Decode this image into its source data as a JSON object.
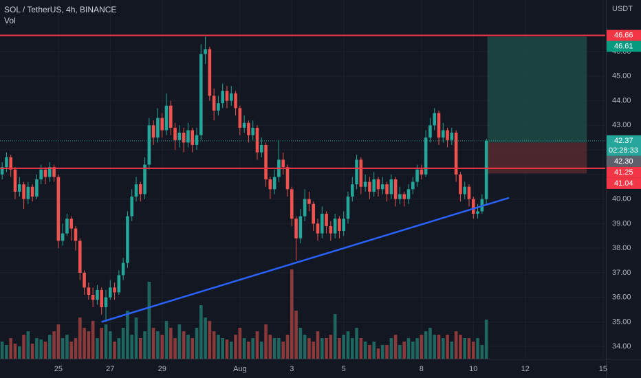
{
  "chart_data": {
    "type": "candlestick",
    "title": "SOL / TetherUS, 4h, BINANCE",
    "volume_label": "Vol",
    "y_axis_label": "USDT",
    "xlim": [
      18,
      578
    ],
    "xticks": [
      {
        "value": 72,
        "label": "25"
      },
      {
        "value": 120,
        "label": "27"
      },
      {
        "value": 168,
        "label": "29"
      },
      {
        "value": 240,
        "label": "Aug"
      },
      {
        "value": 288,
        "label": "3"
      },
      {
        "value": 336,
        "label": "5"
      },
      {
        "value": 408,
        "label": "8"
      },
      {
        "value": 456,
        "label": "10"
      },
      {
        "value": 504,
        "label": "12"
      },
      {
        "value": 576,
        "label": "15"
      }
    ],
    "ylim": [
      33.5,
      48.1
    ],
    "yticks": [
      {
        "value": 34,
        "label": "34.00"
      },
      {
        "value": 35,
        "label": "35.00"
      },
      {
        "value": 36,
        "label": "36.00"
      },
      {
        "value": 37,
        "label": "37.00"
      },
      {
        "value": 38,
        "label": "38.00"
      },
      {
        "value": 39,
        "label": "39.00"
      },
      {
        "value": 40,
        "label": "40.00"
      },
      {
        "value": 41,
        "label": "41.00"
      },
      {
        "value": 42,
        "label": "42.00"
      },
      {
        "value": 43,
        "label": "43.00"
      },
      {
        "value": 44,
        "label": "44.00"
      },
      {
        "value": 45,
        "label": "45.00"
      },
      {
        "value": 46,
        "label": "46.00"
      }
    ],
    "vol_lim": [
      0,
      260
    ],
    "grid": true,
    "colors": {
      "up": "#26a69a",
      "down": "#ef5350",
      "up_volume": "#1f6660",
      "down_volume": "#8a3a3a",
      "profit": "#1e4d47",
      "loss": "#5a2a30"
    },
    "x": [
      20,
      24,
      28,
      32,
      36,
      40,
      44,
      48,
      52,
      56,
      60,
      64,
      68,
      72,
      76,
      80,
      84,
      88,
      92,
      96,
      100,
      104,
      108,
      112,
      116,
      120,
      124,
      128,
      132,
      136,
      140,
      144,
      148,
      152,
      156,
      160,
      164,
      168,
      172,
      176,
      180,
      184,
      188,
      192,
      196,
      200,
      204,
      208,
      212,
      216,
      220,
      224,
      228,
      232,
      236,
      240,
      244,
      248,
      252,
      256,
      260,
      264,
      268,
      272,
      276,
      280,
      284,
      288,
      292,
      296,
      300,
      304,
      308,
      312,
      316,
      320,
      324,
      328,
      332,
      336,
      340,
      344,
      348,
      352,
      356,
      360,
      364,
      368,
      372,
      376,
      380,
      384,
      388,
      392,
      396,
      400,
      404,
      408,
      412,
      416,
      420,
      424,
      428,
      432,
      436,
      440,
      444,
      448,
      452,
      456,
      460,
      464,
      468
    ],
    "open": [
      41.0,
      41.3,
      41.7,
      41.2,
      40.3,
      40.6,
      40.0,
      40.5,
      40.1,
      40.8,
      41.2,
      40.9,
      41.3,
      40.9,
      38.3,
      38.6,
      39.2,
      38.8,
      38.3,
      37.0,
      36.4,
      36.1,
      35.9,
      36.3,
      35.6,
      36.0,
      36.4,
      36.2,
      36.9,
      37.4,
      39.3,
      40.1,
      40.6,
      40.2,
      41.4,
      43.0,
      42.5,
      43.3,
      42.8,
      43.8,
      42.9,
      42.4,
      42.7,
      42.3,
      42.8,
      42.2,
      42.6,
      45.9,
      46.1,
      44.2,
      43.6,
      43.9,
      44.4,
      44.0,
      44.3,
      43.7,
      42.9,
      43.1,
      42.6,
      42.9,
      41.9,
      42.2,
      40.8,
      40.4,
      40.9,
      41.6,
      41.3,
      40.4,
      39.2,
      38.4,
      39.3,
      40.0,
      39.8,
      39.0,
      38.6,
      39.4,
      38.9,
      38.6,
      39.2,
      38.7,
      39.2,
      40.1,
      40.6,
      41.6,
      40.5,
      40.7,
      40.3,
      40.8,
      40.4,
      40.6,
      40.2,
      40.8,
      40.0,
      40.2,
      40.0,
      40.4,
      40.7,
      41.2,
      41.0,
      42.5,
      43.0,
      43.5,
      42.5,
      42.8,
      42.4,
      42.7,
      41.0,
      40.2,
      40.5,
      40.0,
      39.4,
      39.5,
      40.0
    ],
    "high": [
      41.5,
      41.9,
      41.8,
      41.3,
      40.9,
      40.7,
      40.7,
      40.6,
      41.0,
      41.4,
      41.3,
      41.5,
      41.4,
      41.0,
      39.0,
      39.4,
      39.3,
      38.9,
      38.4,
      37.1,
      36.6,
      36.4,
      36.5,
      36.4,
      36.3,
      36.7,
      36.6,
      37.1,
      37.6,
      39.5,
      40.4,
      40.9,
      40.7,
      41.7,
      43.3,
      43.2,
      43.7,
      43.5,
      44.3,
      44.0,
      43.1,
      43.0,
      42.9,
      43.1,
      42.9,
      42.9,
      46.3,
      46.61,
      46.2,
      44.5,
      44.2,
      44.7,
      44.6,
      44.6,
      44.4,
      43.8,
      43.4,
      43.2,
      43.2,
      43.0,
      42.5,
      42.3,
      40.9,
      41.2,
      42.4,
      41.9,
      41.4,
      40.5,
      39.3,
      39.6,
      40.4,
      40.3,
      39.9,
      39.2,
      39.7,
      39.5,
      39.1,
      39.4,
      39.3,
      39.5,
      40.3,
      40.9,
      41.8,
      41.7,
      41.0,
      40.9,
      41.1,
      40.9,
      40.9,
      40.7,
      41.0,
      40.9,
      40.5,
      40.3,
      40.6,
      40.9,
      41.4,
      41.4,
      42.8,
      43.3,
      43.7,
      43.6,
      43.1,
      42.9,
      42.9,
      42.8,
      41.1,
      40.7,
      40.6,
      40.1,
      39.8,
      40.2,
      42.45
    ],
    "low": [
      40.8,
      41.1,
      40.9,
      40.0,
      40.1,
      39.6,
      39.8,
      39.9,
      40.0,
      40.6,
      40.6,
      40.7,
      40.7,
      38.0,
      38.1,
      38.5,
      38.3,
      37.9,
      36.7,
      36.1,
      35.9,
      35.6,
      35.7,
      35.3,
      35.0,
      35.9,
      35.9,
      36.1,
      36.7,
      37.2,
      39.1,
      39.9,
      39.9,
      40.0,
      41.2,
      42.2,
      42.3,
      42.5,
      42.6,
      42.6,
      42.0,
      42.1,
      41.9,
      42.1,
      41.9,
      42.0,
      42.4,
      45.5,
      44.0,
      43.2,
      43.4,
      43.7,
      43.7,
      43.8,
      43.4,
      42.6,
      42.7,
      42.3,
      42.4,
      41.6,
      41.7,
      40.5,
      40.0,
      40.2,
      40.7,
      41.0,
      40.1,
      38.9,
      37.5,
      38.2,
      39.1,
      39.5,
      38.7,
      38.3,
      38.4,
      38.6,
      38.3,
      38.4,
      38.4,
      38.5,
      39.0,
      39.9,
      40.4,
      40.2,
      40.3,
      40.0,
      40.1,
      40.1,
      40.2,
      39.9,
      40.0,
      39.7,
      39.8,
      39.7,
      39.8,
      40.2,
      40.5,
      40.8,
      40.9,
      42.3,
      42.8,
      42.2,
      42.3,
      42.1,
      42.2,
      40.7,
      39.9,
      40.0,
      39.7,
      39.2,
      39.2,
      39.4,
      39.8
    ],
    "close": [
      41.3,
      41.7,
      41.2,
      40.3,
      40.6,
      40.0,
      40.5,
      40.1,
      40.8,
      41.2,
      40.9,
      41.3,
      40.9,
      38.3,
      38.6,
      39.2,
      38.8,
      38.3,
      37.0,
      36.4,
      36.1,
      35.9,
      36.3,
      35.6,
      36.0,
      36.4,
      36.2,
      36.9,
      37.4,
      39.3,
      40.1,
      40.6,
      40.2,
      41.4,
      43.0,
      42.5,
      43.3,
      42.8,
      43.8,
      42.9,
      42.4,
      42.7,
      42.3,
      42.8,
      42.2,
      42.6,
      45.9,
      46.1,
      44.2,
      43.6,
      43.9,
      44.4,
      44.0,
      44.3,
      43.7,
      42.9,
      43.1,
      42.6,
      42.9,
      41.9,
      42.2,
      40.8,
      40.4,
      40.9,
      41.6,
      41.3,
      40.4,
      39.2,
      38.4,
      39.3,
      40.0,
      39.8,
      39.0,
      38.6,
      39.4,
      38.9,
      38.6,
      39.2,
      38.7,
      39.2,
      40.1,
      40.6,
      41.6,
      40.5,
      40.7,
      40.3,
      40.8,
      40.4,
      40.6,
      40.2,
      40.8,
      40.0,
      40.2,
      40.0,
      40.4,
      40.7,
      41.2,
      41.0,
      42.5,
      43.0,
      43.5,
      42.5,
      42.8,
      42.4,
      42.7,
      41.0,
      40.2,
      40.5,
      40.0,
      39.4,
      39.5,
      40.0,
      42.37
    ],
    "volume": [
      25,
      20,
      30,
      22,
      18,
      35,
      40,
      22,
      30,
      28,
      25,
      35,
      40,
      50,
      30,
      35,
      25,
      30,
      60,
      45,
      40,
      55,
      30,
      45,
      50,
      40,
      25,
      30,
      45,
      70,
      35,
      60,
      30,
      40,
      112,
      45,
      40,
      35,
      55,
      45,
      30,
      50,
      40,
      35,
      30,
      45,
      78,
      60,
      55,
      40,
      35,
      30,
      28,
      25,
      35,
      45,
      30,
      25,
      30,
      40,
      25,
      50,
      35,
      30,
      30,
      25,
      35,
      130,
      70,
      45,
      35,
      30,
      25,
      40,
      30,
      30,
      35,
      65,
      30,
      35,
      40,
      30,
      45,
      30,
      25,
      20,
      25,
      15,
      20,
      20,
      30,
      35,
      20,
      25,
      30,
      25,
      30,
      35,
      40,
      45,
      35,
      35,
      30,
      35,
      25,
      40,
      35,
      30,
      30,
      25,
      30,
      20,
      57
    ],
    "hlines": [
      {
        "value": 46.66,
        "color": "#f23645"
      },
      {
        "value": 41.25,
        "color": "#f23645"
      }
    ],
    "trendline": {
      "x": [
        112,
        489
      ],
      "y": [
        35.0,
        40.05
      ],
      "color": "#2962ff"
    },
    "position": {
      "left": 469,
      "right": 561,
      "entry": 42.3,
      "target": 46.61,
      "stop": 41.04
    },
    "price_labels": [
      {
        "value": 46.66,
        "label": "46.66",
        "color": "#f23645"
      },
      {
        "value": 46.61,
        "label": "46.61",
        "color": "#089981"
      },
      {
        "value": 42.37,
        "label": "42.37",
        "color": "#26a69a",
        "countdown": "02:28:33"
      },
      {
        "value": 42.3,
        "label": "42.30",
        "color": "#5d606b"
      },
      {
        "value": 41.25,
        "label": "41.25",
        "color": "#f23645"
      },
      {
        "value": 41.04,
        "label": "41.04",
        "color": "#f23645"
      }
    ]
  }
}
